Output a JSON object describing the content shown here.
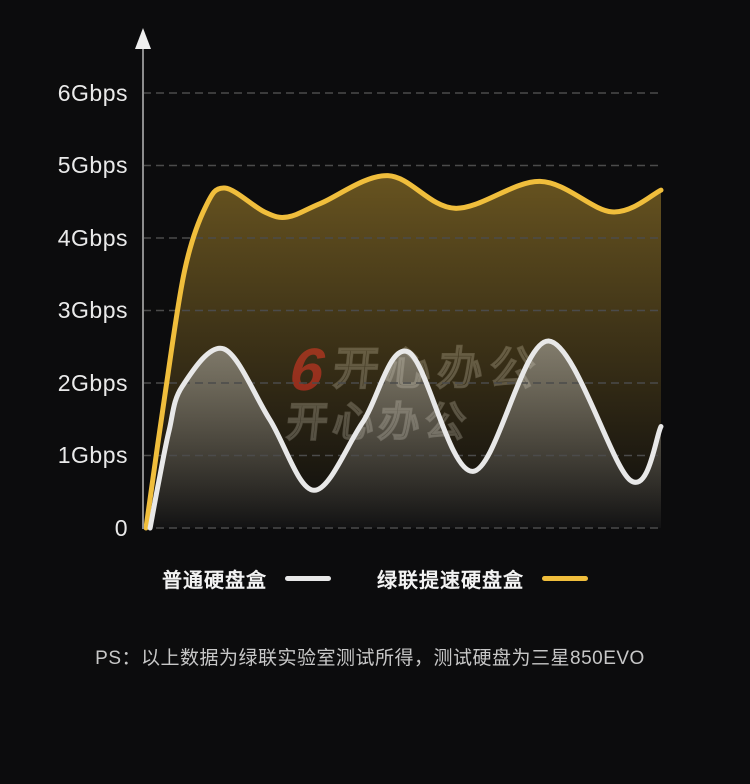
{
  "page": {
    "background": "#0c0c0d"
  },
  "watermark": {
    "logo": "6",
    "logo_color": "#8e1418",
    "text": "开心办公"
  },
  "chart_data": {
    "type": "area",
    "title": "",
    "xlabel": "",
    "ylabel": "",
    "ylim": [
      0,
      6
    ],
    "xticks_visible": false,
    "grid": "horizontal-dashed",
    "grid_color": "#4b4b4b",
    "axis_color": "#8d8d8d",
    "legend_position": "bottom",
    "yticks": [
      {
        "label": "6Gbps",
        "value": 6
      },
      {
        "label": "5Gbps",
        "value": 5
      },
      {
        "label": "4Gbps",
        "value": 4
      },
      {
        "label": "3Gbps",
        "value": 3
      },
      {
        "label": "2Gbps",
        "value": 2
      },
      {
        "label": "1Gbps",
        "value": 1
      },
      {
        "label": "0",
        "value": 0
      }
    ],
    "series": [
      {
        "name": "普通硬盘盒",
        "color": "#e8e8e8",
        "fill_from": "rgba(215,215,213,0.45)",
        "fill_to": "rgba(215,215,213,0.03)",
        "points_unit": "x: normalized 0-1 (no x labels shown), y: Gbps",
        "points": [
          [
            0.008,
            0
          ],
          [
            0.025,
            0.65
          ],
          [
            0.045,
            1.35
          ],
          [
            0.07,
            1.95
          ],
          [
            0.151,
            2.47
          ],
          [
            0.24,
            1.5
          ],
          [
            0.326,
            0.52
          ],
          [
            0.42,
            1.45
          ],
          [
            0.509,
            2.43
          ],
          [
            0.635,
            0.78
          ],
          [
            0.782,
            2.58
          ],
          [
            0.94,
            0.66
          ],
          [
            1.0,
            1.4
          ]
        ]
      },
      {
        "name": "绿联提速硬盘盒",
        "color": "#f0be3c",
        "fill_from": "rgba(240,190,60,0.40)",
        "fill_to": "rgba(240,190,60,0.0)",
        "points_unit": "x: normalized 0-1 (no x labels shown), y: Gbps",
        "points": [
          [
            0,
            0
          ],
          [
            0.038,
            1.9
          ],
          [
            0.075,
            3.55
          ],
          [
            0.115,
            4.42
          ],
          [
            0.153,
            4.69
          ],
          [
            0.23,
            4.36
          ],
          [
            0.275,
            4.29
          ],
          [
            0.34,
            4.48
          ],
          [
            0.47,
            4.86
          ],
          [
            0.6,
            4.41
          ],
          [
            0.765,
            4.78
          ],
          [
            0.905,
            4.36
          ],
          [
            1.0,
            4.66
          ]
        ]
      }
    ]
  },
  "legend": {
    "items": [
      {
        "label": "普通硬盘盒"
      },
      {
        "label": "绿联提速硬盘盒"
      }
    ]
  },
  "note": {
    "text": "PS：以上数据为绿联实验室测试所得，测试硬盘为三星850EVO"
  }
}
